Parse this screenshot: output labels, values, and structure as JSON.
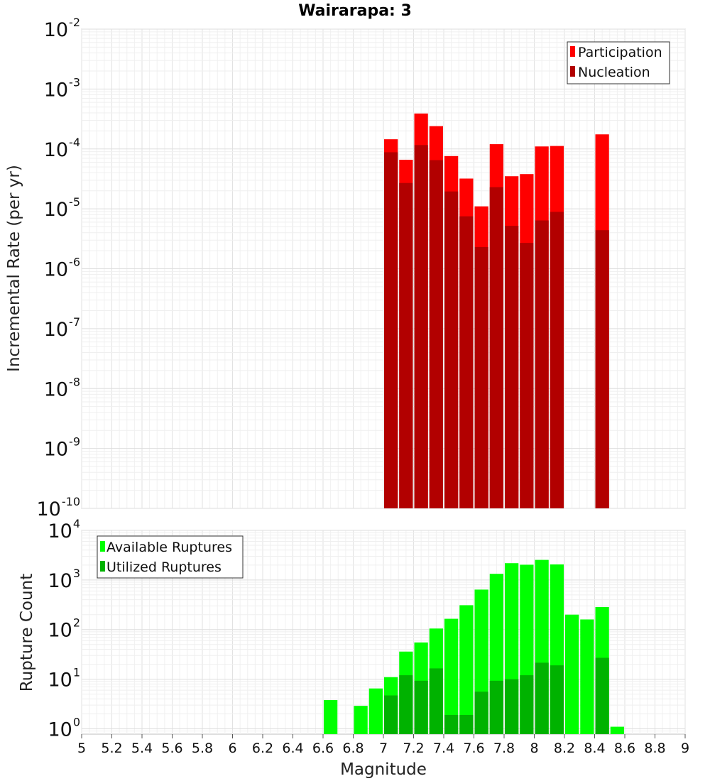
{
  "chart_data": {
    "title": "Wairarapa: 3",
    "x_ticks": [
      "5",
      "5.2",
      "5.4",
      "5.6",
      "5.8",
      "6",
      "6.2",
      "6.4",
      "6.6",
      "6.8",
      "7",
      "7.2",
      "7.4",
      "7.6",
      "7.8",
      "8",
      "8.2",
      "8.4",
      "8.6",
      "8.8",
      "9"
    ],
    "xlabel": "Magnitude",
    "xlim": [
      5,
      9
    ],
    "bin_width": 0.1,
    "panels": [
      {
        "type": "bar",
        "ylabel": "Incremental Rate (per yr)",
        "yscale": "log",
        "ylim": [
          1e-10,
          0.01
        ],
        "y_ticks": [
          {
            "base": "10",
            "exp": "-10",
            "value": 1e-10
          },
          {
            "base": "10",
            "exp": "-9",
            "value": 1e-09
          },
          {
            "base": "10",
            "exp": "-8",
            "value": 1e-08
          },
          {
            "base": "10",
            "exp": "-7",
            "value": 1e-07
          },
          {
            "base": "10",
            "exp": "-6",
            "value": 1e-06
          },
          {
            "base": "10",
            "exp": "-5",
            "value": 1e-05
          },
          {
            "base": "10",
            "exp": "-4",
            "value": 0.0001
          },
          {
            "base": "10",
            "exp": "-3",
            "value": 0.001
          },
          {
            "base": "10",
            "exp": "-2",
            "value": 0.01
          }
        ],
        "legend_position": "top-right",
        "series": [
          {
            "name": "Participation",
            "color": "#ff0000",
            "x": [
              7.05,
              7.15,
              7.25,
              7.35,
              7.45,
              7.55,
              7.65,
              7.75,
              7.85,
              7.95,
              8.05,
              8.15,
              8.45
            ],
            "values": [
              0.000145,
              6.6e-05,
              0.00039,
              0.00024,
              7.6e-05,
              3.2e-05,
              1.1e-05,
              0.00012,
              3.5e-05,
              3.8e-05,
              0.00011,
              0.000112,
              0.000175
            ]
          },
          {
            "name": "Nucleation",
            "color": "#b20000",
            "x": [
              7.05,
              7.15,
              7.25,
              7.35,
              7.45,
              7.55,
              7.65,
              7.75,
              7.85,
              7.95,
              8.05,
              8.15,
              8.45
            ],
            "values": [
              8.8e-05,
              2.7e-05,
              0.000116,
              6.5e-05,
              1.95e-05,
              7.5e-06,
              2.3e-06,
              2.3e-05,
              5.2e-06,
              2.7e-06,
              6.4e-06,
              8.9e-06,
              4.4e-06
            ]
          }
        ]
      },
      {
        "type": "bar",
        "ylabel": "Rupture Count",
        "yscale": "log",
        "ylim": [
          0.78,
          10000
        ],
        "y_ticks": [
          {
            "base": "10",
            "exp": "0",
            "value": 1
          },
          {
            "base": "10",
            "exp": "1",
            "value": 10
          },
          {
            "base": "10",
            "exp": "2",
            "value": 100
          },
          {
            "base": "10",
            "exp": "3",
            "value": 1000
          },
          {
            "base": "10",
            "exp": "4",
            "value": 10000
          }
        ],
        "legend_position": "top-left",
        "series": [
          {
            "name": "Available Ruptures",
            "color": "#00ff00",
            "x": [
              6.65,
              6.85,
              6.95,
              7.05,
              7.15,
              7.25,
              7.35,
              7.45,
              7.55,
              7.65,
              7.75,
              7.85,
              7.95,
              8.05,
              8.15,
              8.25,
              8.35,
              8.45,
              8.55
            ],
            "values": [
              3.8,
              2.9,
              6.5,
              11,
              36,
              55,
              105,
              165,
              310,
              640,
              1330,
              2180,
              2030,
              2540,
              2060,
              200,
              160,
              285,
              1.1
            ]
          },
          {
            "name": "Utilized Ruptures",
            "color": "#00b200",
            "x": [
              7.05,
              7.15,
              7.25,
              7.35,
              7.45,
              7.55,
              7.65,
              7.75,
              7.85,
              7.95,
              8.05,
              8.15,
              8.45
            ],
            "values": [
              4.7,
              12,
              9.3,
              16.5,
              1.9,
              1.9,
              5.6,
              9.3,
              10,
              12,
              21.5,
              19,
              27
            ]
          }
        ]
      }
    ]
  }
}
